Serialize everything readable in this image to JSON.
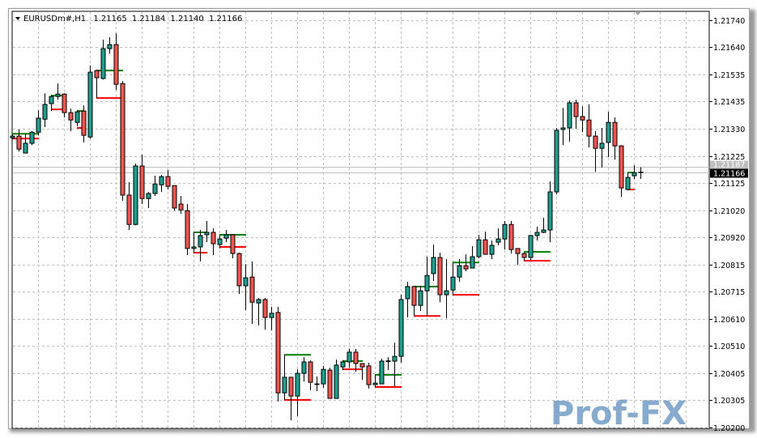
{
  "header": {
    "symbol": "EURUSDm#,H1",
    "open": "1.21165",
    "high": "1.21184",
    "low": "1.21140",
    "close": "1.21166"
  },
  "watermark": "Prof-FX",
  "colors": {
    "bull": "#1f9e8e",
    "bear": "#ef5451",
    "outline": "#000000",
    "level_upper": "#008000",
    "level_lower": "#ff0000",
    "grid": "#c0c0c0"
  },
  "chart_data": {
    "type": "candlestick",
    "title": "EURUSDm#,H1",
    "field_order": [
      "open",
      "high",
      "low",
      "close"
    ],
    "ylim": [
      1.20197,
      1.21774
    ],
    "y_ticks": [
      "1.21740",
      "1.21640",
      "1.21535",
      "1.21435",
      "1.21330",
      "1.21225",
      "1.21125",
      "1.21020",
      "1.20920",
      "1.20815",
      "1.20715",
      "1.20610",
      "1.20510",
      "1.20405",
      "1.20305",
      "1.20200"
    ],
    "grid": true,
    "bid": "1.21166",
    "ask": "1.21187",
    "candles": [
      [
        1.21296,
        1.21308,
        1.2129,
        1.21302
      ],
      [
        1.21302,
        1.21327,
        1.21244,
        1.21253
      ],
      [
        1.21238,
        1.21311,
        1.21238,
        1.21275
      ],
      [
        1.21275,
        1.21321,
        1.21268,
        1.21317
      ],
      [
        1.21317,
        1.214,
        1.21305,
        1.2137
      ],
      [
        1.21366,
        1.21464,
        1.21336,
        1.21422
      ],
      [
        1.21425,
        1.21458,
        1.21397,
        1.21452
      ],
      [
        1.21452,
        1.21501,
        1.2144,
        1.21461
      ],
      [
        1.21461,
        1.21464,
        1.21373,
        1.21391
      ],
      [
        1.21391,
        1.21406,
        1.21321,
        1.21363
      ],
      [
        1.21354,
        1.214,
        1.21339,
        1.21394
      ],
      [
        1.21397,
        1.21418,
        1.21278,
        1.21305
      ],
      [
        1.21299,
        1.21569,
        1.21293,
        1.21544
      ],
      [
        1.2155,
        1.2155,
        1.21446,
        1.21523
      ],
      [
        1.2152,
        1.21667,
        1.21516,
        1.21633
      ],
      [
        1.21633,
        1.21676,
        1.21614,
        1.21648
      ],
      [
        1.21648,
        1.21691,
        1.21477,
        1.21498
      ],
      [
        1.21501,
        1.2151,
        1.21057,
        1.21079
      ],
      [
        1.21079,
        1.21128,
        1.20947,
        1.20968
      ],
      [
        1.20968,
        1.21198,
        1.20965,
        1.21189
      ],
      [
        1.21189,
        1.21232,
        1.21045,
        1.21066
      ],
      [
        1.21066,
        1.21091,
        1.2103,
        1.21085
      ],
      [
        1.21085,
        1.21152,
        1.21076,
        1.21121
      ],
      [
        1.21118,
        1.21155,
        1.21091,
        1.21149
      ],
      [
        1.21149,
        1.21174,
        1.211,
        1.21112
      ],
      [
        1.21115,
        1.21115,
        1.2102,
        1.2103
      ],
      [
        1.21045,
        1.21076,
        1.21008,
        1.21023
      ],
      [
        1.2102,
        1.21045,
        1.20852,
        1.20877
      ],
      [
        1.20877,
        1.20938,
        1.20858,
        1.20883
      ],
      [
        1.20883,
        1.20947,
        1.20828,
        1.20926
      ],
      [
        1.20929,
        1.20981,
        1.20901,
        1.20938
      ],
      [
        1.20938,
        1.20953,
        1.20852,
        1.20895
      ],
      [
        1.20892,
        1.20929,
        1.20877,
        1.20913
      ],
      [
        1.20916,
        1.20947,
        1.20901,
        1.20929
      ],
      [
        1.20929,
        1.20929,
        1.2084,
        1.20858
      ],
      [
        1.20858,
        1.20861,
        1.20705,
        1.20736
      ],
      [
        1.20736,
        1.20818,
        1.20644,
        1.20766
      ],
      [
        1.20769,
        1.20828,
        1.20592,
        1.20674
      ],
      [
        1.20671,
        1.2069,
        1.20586,
        1.20684
      ],
      [
        1.20684,
        1.2069,
        1.2057,
        1.20616
      ],
      [
        1.20616,
        1.20656,
        1.20567,
        1.20632
      ],
      [
        1.20635,
        1.20656,
        1.20298,
        1.20331
      ],
      [
        1.20331,
        1.20475,
        1.20304,
        1.2039
      ],
      [
        1.2039,
        1.2039,
        1.20227,
        1.20319
      ],
      [
        1.20319,
        1.2042,
        1.20243,
        1.20405
      ],
      [
        1.20405,
        1.20466,
        1.20374,
        1.20448
      ],
      [
        1.20448,
        1.20454,
        1.20341,
        1.20371
      ],
      [
        1.20365,
        1.20393,
        1.20338,
        1.20365
      ],
      [
        1.20365,
        1.20433,
        1.2035,
        1.2042
      ],
      [
        1.20417,
        1.20426,
        1.2031,
        1.2031
      ],
      [
        1.2031,
        1.20457,
        1.2031,
        1.20436
      ],
      [
        1.20429,
        1.20454,
        1.20417,
        1.20448
      ],
      [
        1.20448,
        1.20497,
        1.20426,
        1.20485
      ],
      [
        1.20485,
        1.20497,
        1.20411,
        1.20442
      ],
      [
        1.20442,
        1.20442,
        1.2038,
        1.20429
      ],
      [
        1.20433,
        1.20445,
        1.20347,
        1.20362
      ],
      [
        1.20362,
        1.20399,
        1.20353,
        1.20368
      ],
      [
        1.20365,
        1.2046,
        1.20365,
        1.20451
      ],
      [
        1.20451,
        1.20466,
        1.20417,
        1.20452
      ],
      [
        1.20451,
        1.20521,
        1.20356,
        1.20469
      ],
      [
        1.20469,
        1.20702,
        1.20445,
        1.20684
      ],
      [
        1.20687,
        1.20751,
        1.20616,
        1.20733
      ],
      [
        1.20733,
        1.20733,
        1.20622,
        1.20662
      ],
      [
        1.20662,
        1.20736,
        1.20641,
        1.20717
      ],
      [
        1.20717,
        1.20846,
        1.20622,
        1.20775
      ],
      [
        1.20782,
        1.20892,
        1.20754,
        1.20843
      ],
      [
        1.20843,
        1.20861,
        1.20674,
        1.20702
      ],
      [
        1.20702,
        1.20837,
        1.20613,
        1.20717
      ],
      [
        1.2072,
        1.20824,
        1.20702,
        1.20769
      ],
      [
        1.20769,
        1.20837,
        1.20751,
        1.20812
      ],
      [
        1.20812,
        1.20855,
        1.20791,
        1.208
      ],
      [
        1.20803,
        1.20886,
        1.20803,
        1.20846
      ],
      [
        1.20846,
        1.20929,
        1.2084,
        1.2091
      ],
      [
        1.2091,
        1.20941,
        1.20855,
        1.20855
      ],
      [
        1.20855,
        1.20907,
        1.20837,
        1.20889
      ],
      [
        1.20901,
        1.20953,
        1.20889,
        1.20913
      ],
      [
        1.20913,
        1.20981,
        1.20873,
        1.20968
      ],
      [
        1.20968,
        1.20981,
        1.20858,
        1.20873
      ],
      [
        1.20877,
        1.20877,
        1.20815,
        1.20858
      ],
      [
        1.20858,
        1.20861,
        1.20831,
        1.20843
      ],
      [
        1.20843,
        1.20929,
        1.20834,
        1.20926
      ],
      [
        1.20926,
        1.20959,
        1.20907,
        1.20938
      ],
      [
        1.20938,
        1.20993,
        1.20935,
        1.20947
      ],
      [
        1.20947,
        1.21131,
        1.20901,
        1.21091
      ],
      [
        1.21091,
        1.21333,
        1.21082,
        1.21324
      ],
      [
        1.21327,
        1.21409,
        1.21268,
        1.21333
      ],
      [
        1.21333,
        1.21437,
        1.21281,
        1.21428
      ],
      [
        1.21428,
        1.2144,
        1.2133,
        1.21376
      ],
      [
        1.21376,
        1.21415,
        1.21317,
        1.21363
      ],
      [
        1.21363,
        1.21422,
        1.21259,
        1.21302
      ],
      [
        1.21302,
        1.21321,
        1.21167,
        1.21256
      ],
      [
        1.21256,
        1.21333,
        1.21183,
        1.21275
      ],
      [
        1.21278,
        1.21394,
        1.21223,
        1.21354
      ],
      [
        1.21354,
        1.21373,
        1.21213,
        1.21265
      ],
      [
        1.21265,
        1.21268,
        1.21072,
        1.21106
      ],
      [
        1.211,
        1.21164,
        1.211,
        1.21146
      ],
      [
        1.21152,
        1.21192,
        1.2114,
        1.21164
      ],
      [
        1.21165,
        1.21184,
        1.2114,
        1.21166
      ]
    ],
    "levels": [
      {
        "from": 0,
        "to": 4,
        "upper": 1.21311,
        "lower": 1.21293
      },
      {
        "from": 6,
        "to": 8,
        "upper": 1.21455,
        "lower": 1.21403
      },
      {
        "from": 10,
        "to": 11,
        "upper": 1.21397,
        "lower": 1.21333
      },
      {
        "from": 13,
        "to": 17,
        "upper": 1.2155,
        "lower": 1.21446
      },
      {
        "from": 28,
        "to": 30,
        "upper": 1.20938,
        "lower": 1.20861
      },
      {
        "from": 32,
        "to": 36,
        "upper": 1.20929,
        "lower": 1.20883
      },
      {
        "from": 42,
        "to": 46,
        "upper": 1.20475,
        "lower": 1.20304
      },
      {
        "from": 51,
        "to": 54,
        "upper": 1.20451,
        "lower": 1.2042
      },
      {
        "from": 56,
        "to": 60,
        "upper": 1.20399,
        "lower": 1.20353
      },
      {
        "from": 62,
        "to": 66,
        "upper": 1.20733,
        "lower": 1.20622
      },
      {
        "from": 68,
        "to": 72,
        "upper": 1.20824,
        "lower": 1.20702
      },
      {
        "from": 79,
        "to": 83,
        "upper": 1.20864,
        "lower": 1.20831
      },
      {
        "from": 95,
        "to": 96,
        "upper": 1.21164,
        "lower": 1.211
      }
    ]
  }
}
